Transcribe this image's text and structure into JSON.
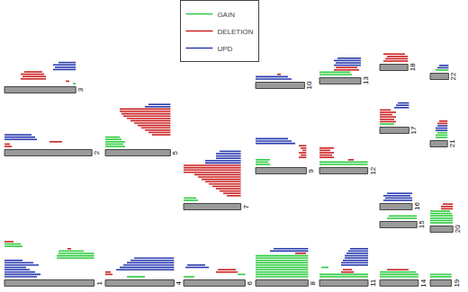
{
  "chart_data": {
    "type": "karyogram",
    "legend": "top",
    "tick_labels": false,
    "grid": false,
    "series": [
      {
        "name": "GAIN",
        "color": "#2ecc40"
      },
      {
        "name": "DELETION",
        "color": "#cc2222"
      },
      {
        "name": "UPD",
        "color": "#2a3bb0"
      }
    ],
    "chromosomes": [
      {
        "name": "1",
        "length": 249,
        "segments": [
          [
            "UPD",
            0,
            90
          ],
          [
            "UPD",
            0,
            100
          ],
          [
            "UPD",
            0,
            85
          ],
          [
            "UPD",
            0,
            70
          ],
          [
            "UPD",
            0,
            60
          ],
          [
            "UPD",
            0,
            95
          ],
          [
            "UPD",
            0,
            80
          ],
          [
            "UPD",
            0,
            50
          ],
          [
            "GAIN",
            145,
            249
          ],
          [
            "GAIN",
            145,
            249
          ],
          [
            "GAIN",
            150,
            249
          ],
          [
            "GAIN",
            150,
            220
          ],
          [
            "DELETION",
            175,
            185
          ],
          [
            "GAIN",
            0,
            50
          ],
          [
            "GAIN",
            0,
            45
          ],
          [
            "DELETION",
            0,
            25
          ]
        ]
      },
      {
        "name": "2",
        "length": 243,
        "segments": [
          [
            "DELETION",
            0,
            20
          ],
          [
            "DELETION",
            0,
            15
          ],
          [
            "DELETION",
            125,
            160
          ],
          [
            "UPD",
            0,
            90
          ],
          [
            "UPD",
            0,
            85
          ],
          [
            "UPD",
            0,
            75
          ]
        ]
      },
      {
        "name": "3",
        "length": 198,
        "segments": [
          [
            "GAIN",
            190,
            198
          ],
          [
            "DELETION",
            170,
            180
          ],
          [
            "DELETION",
            45,
            115
          ],
          [
            "DELETION",
            50,
            115
          ],
          [
            "DELETION",
            45,
            110
          ],
          [
            "DELETION",
            55,
            105
          ],
          [
            "UPD",
            135,
            198
          ],
          [
            "UPD",
            140,
            198
          ],
          [
            "UPD",
            135,
            198
          ],
          [
            "UPD",
            150,
            198
          ]
        ]
      },
      {
        "name": "4",
        "length": 191,
        "segments": [
          [
            "GAIN",
            60,
            110
          ],
          [
            "DELETION",
            0,
            20
          ],
          [
            "DELETION",
            0,
            15
          ],
          [
            "UPD",
            30,
            191
          ],
          [
            "UPD",
            40,
            191
          ],
          [
            "UPD",
            50,
            191
          ],
          [
            "UPD",
            60,
            191
          ],
          [
            "UPD",
            70,
            191
          ],
          [
            "UPD",
            80,
            191
          ]
        ]
      },
      {
        "name": "5",
        "length": 181,
        "segments": [
          [
            "GAIN",
            0,
            55
          ],
          [
            "GAIN",
            0,
            50
          ],
          [
            "GAIN",
            0,
            55
          ],
          [
            "GAIN",
            0,
            45
          ],
          [
            "GAIN",
            0,
            40
          ],
          [
            "DELETION",
            130,
            181
          ],
          [
            "DELETION",
            120,
            181
          ],
          [
            "DELETION",
            110,
            181
          ],
          [
            "DELETION",
            100,
            181
          ],
          [
            "DELETION",
            90,
            181
          ],
          [
            "DELETION",
            80,
            181
          ],
          [
            "DELETION",
            70,
            181
          ],
          [
            "DELETION",
            60,
            181
          ],
          [
            "DELETION",
            50,
            181
          ],
          [
            "DELETION",
            45,
            181
          ],
          [
            "DELETION",
            40,
            181
          ],
          [
            "DELETION",
            40,
            181
          ],
          [
            "UPD",
            110,
            181
          ],
          [
            "UPD",
            120,
            181
          ]
        ]
      },
      {
        "name": "6",
        "length": 171,
        "segments": [
          [
            "GAIN",
            0,
            30
          ],
          [
            "GAIN",
            150,
            171
          ],
          [
            "DELETION",
            90,
            150
          ],
          [
            "DELETION",
            95,
            145
          ],
          [
            "UPD",
            5,
            70
          ],
          [
            "UPD",
            10,
            60
          ]
        ]
      },
      {
        "name": "7",
        "length": 159,
        "segments": [
          [
            "GAIN",
            0,
            40
          ],
          [
            "GAIN",
            0,
            35
          ],
          [
            "DELETION",
            120,
            159
          ],
          [
            "DELETION",
            110,
            159
          ],
          [
            "DELETION",
            100,
            159
          ],
          [
            "DELETION",
            90,
            159
          ],
          [
            "DELETION",
            80,
            159
          ],
          [
            "DELETION",
            70,
            159
          ],
          [
            "DELETION",
            60,
            159
          ],
          [
            "DELETION",
            50,
            159
          ],
          [
            "DELETION",
            40,
            159
          ],
          [
            "DELETION",
            30,
            159
          ],
          [
            "DELETION",
            0,
            159
          ],
          [
            "DELETION",
            0,
            159
          ],
          [
            "DELETION",
            0,
            159
          ],
          [
            "DELETION",
            0,
            159
          ],
          [
            "UPD",
            60,
            159
          ],
          [
            "UPD",
            60,
            159
          ],
          [
            "UPD",
            90,
            159
          ],
          [
            "UPD",
            90,
            159
          ],
          [
            "UPD",
            90,
            159
          ],
          [
            "UPD",
            100,
            159
          ]
        ]
      },
      {
        "name": "8",
        "length": 146,
        "segments": [
          [
            "GAIN",
            0,
            146
          ],
          [
            "GAIN",
            0,
            146
          ],
          [
            "GAIN",
            0,
            146
          ],
          [
            "GAIN",
            0,
            146
          ],
          [
            "GAIN",
            0,
            146
          ],
          [
            "GAIN",
            0,
            146
          ],
          [
            "GAIN",
            0,
            146
          ],
          [
            "GAIN",
            0,
            146
          ],
          [
            "GAIN",
            0,
            146
          ],
          [
            "GAIN",
            0,
            146
          ],
          [
            "DELETION",
            110,
            140
          ],
          [
            "UPD",
            40,
            146
          ],
          [
            "UPD",
            50,
            146
          ]
        ]
      },
      {
        "name": "9",
        "length": 141,
        "segments": [
          [
            "GAIN",
            0,
            40
          ],
          [
            "GAIN",
            0,
            35
          ],
          [
            "GAIN",
            0,
            40
          ],
          [
            "DELETION",
            120,
            141
          ],
          [
            "DELETION",
            125,
            141
          ],
          [
            "DELETION",
            120,
            141
          ],
          [
            "DELETION",
            130,
            141
          ],
          [
            "DELETION",
            125,
            141
          ],
          [
            "DELETION",
            120,
            141
          ],
          [
            "UPD",
            0,
            110
          ],
          [
            "UPD",
            0,
            100
          ],
          [
            "UPD",
            0,
            90
          ]
        ]
      },
      {
        "name": "10",
        "length": 136,
        "segments": [
          [
            "UPD",
            0,
            100
          ],
          [
            "UPD",
            0,
            90
          ],
          [
            "DELETION",
            60,
            70
          ]
        ]
      },
      {
        "name": "11",
        "length": 135,
        "segments": [
          [
            "GAIN",
            0,
            135
          ],
          [
            "GAIN",
            0,
            135
          ],
          [
            "DELETION",
            60,
            95
          ],
          [
            "DELETION",
            65,
            90
          ],
          [
            "GAIN",
            5,
            25
          ],
          [
            "UPD",
            60,
            135
          ],
          [
            "UPD",
            60,
            135
          ],
          [
            "UPD",
            65,
            135
          ],
          [
            "UPD",
            70,
            135
          ],
          [
            "UPD",
            70,
            135
          ],
          [
            "UPD",
            75,
            135
          ],
          [
            "UPD",
            80,
            135
          ],
          [
            "UPD",
            85,
            135
          ]
        ]
      },
      {
        "name": "12",
        "length": 134,
        "segments": [
          [
            "GAIN",
            0,
            134
          ],
          [
            "GAIN",
            0,
            134
          ],
          [
            "DELETION",
            80,
            95
          ],
          [
            "DELETION",
            0,
            40
          ],
          [
            "DELETION",
            0,
            35
          ],
          [
            "DELETION",
            0,
            40
          ],
          [
            "DELETION",
            0,
            30
          ],
          [
            "DELETION",
            0,
            40
          ]
        ]
      },
      {
        "name": "13",
        "length": 115,
        "segments": [
          [
            "GAIN",
            0,
            90
          ],
          [
            "GAIN",
            0,
            85
          ],
          [
            "DELETION",
            40,
            110
          ],
          [
            "DELETION",
            45,
            105
          ],
          [
            "UPD",
            40,
            115
          ],
          [
            "UPD",
            45,
            115
          ],
          [
            "UPD",
            40,
            115
          ],
          [
            "UPD",
            50,
            115
          ]
        ]
      },
      {
        "name": "14",
        "length": 107,
        "segments": [
          [
            "GAIN",
            0,
            107
          ],
          [
            "GAIN",
            0,
            107
          ],
          [
            "GAIN",
            0,
            100
          ],
          [
            "DELETION",
            20,
            80
          ]
        ]
      },
      {
        "name": "15",
        "length": 103,
        "segments": [
          [
            "GAIN",
            20,
            103
          ],
          [
            "GAIN",
            25,
            103
          ]
        ]
      },
      {
        "name": "16",
        "length": 90,
        "segments": [
          [
            "UPD",
            10,
            90
          ],
          [
            "UPD",
            15,
            90
          ],
          [
            "UPD",
            10,
            85
          ],
          [
            "UPD",
            20,
            90
          ]
        ]
      },
      {
        "name": "17",
        "length": 81,
        "segments": [
          [
            "GAIN",
            0,
            40
          ],
          [
            "DELETION",
            0,
            45
          ],
          [
            "DELETION",
            0,
            40
          ],
          [
            "DELETION",
            0,
            45
          ],
          [
            "DELETION",
            0,
            35
          ],
          [
            "DELETION",
            0,
            45
          ],
          [
            "DELETION",
            0,
            30
          ],
          [
            "UPD",
            40,
            81
          ],
          [
            "UPD",
            45,
            81
          ],
          [
            "UPD",
            50,
            81
          ]
        ]
      },
      {
        "name": "18",
        "length": 78,
        "segments": [
          [
            "DELETION",
            10,
            78
          ],
          [
            "DELETION",
            15,
            78
          ],
          [
            "DELETION",
            20,
            78
          ],
          [
            "DELETION",
            10,
            70
          ]
        ]
      },
      {
        "name": "19",
        "length": 59,
        "segments": [
          [
            "GAIN",
            0,
            59
          ],
          [
            "GAIN",
            0,
            59
          ]
        ]
      },
      {
        "name": "20",
        "length": 63,
        "segments": [
          [
            "GAIN",
            0,
            63
          ],
          [
            "GAIN",
            0,
            63
          ],
          [
            "GAIN",
            0,
            63
          ],
          [
            "GAIN",
            0,
            63
          ],
          [
            "GAIN",
            0,
            60
          ],
          [
            "GAIN",
            0,
            55
          ],
          [
            "DELETION",
            30,
            63
          ],
          [
            "DELETION",
            30,
            63
          ],
          [
            "DELETION",
            35,
            63
          ]
        ]
      },
      {
        "name": "21",
        "length": 48,
        "segments": [
          [
            "GAIN",
            15,
            48
          ],
          [
            "GAIN",
            15,
            48
          ],
          [
            "GAIN",
            20,
            48
          ],
          [
            "UPD",
            15,
            48
          ],
          [
            "UPD",
            15,
            48
          ],
          [
            "UPD",
            20,
            48
          ],
          [
            "DELETION",
            20,
            48
          ],
          [
            "DELETION",
            25,
            48
          ]
        ]
      },
      {
        "name": "22",
        "length": 51,
        "segments": [
          [
            "GAIN",
            15,
            51
          ],
          [
            "UPD",
            20,
            51
          ],
          [
            "UPD",
            25,
            51
          ]
        ]
      }
    ]
  }
}
